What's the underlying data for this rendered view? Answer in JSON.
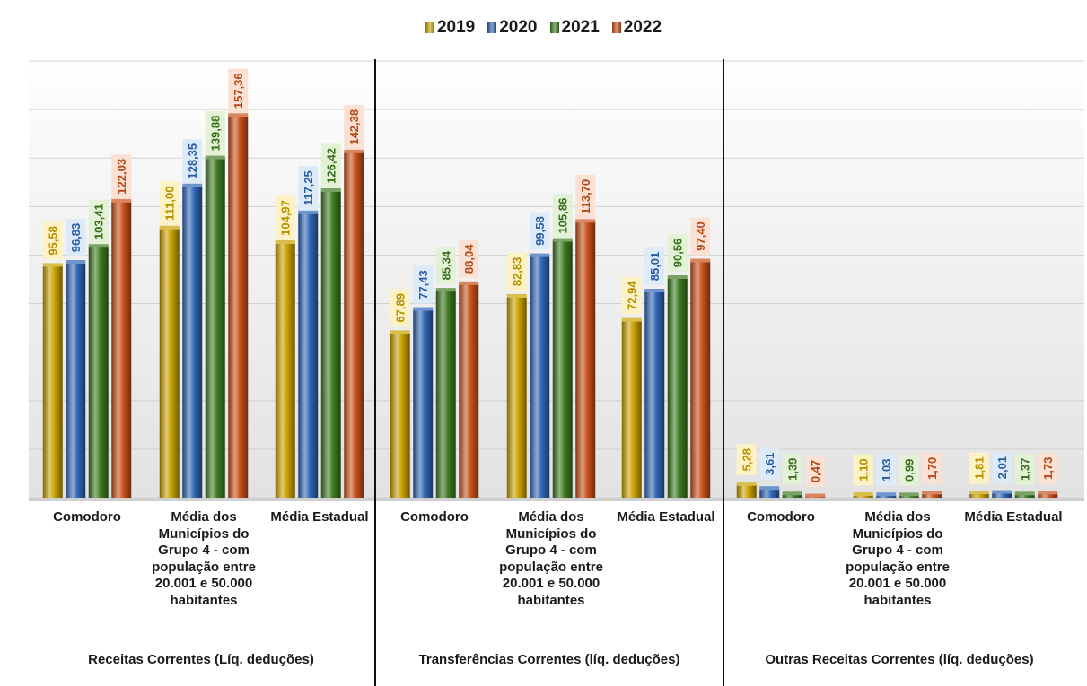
{
  "chart_data": {
    "type": "bar",
    "legend_position": "top",
    "grid": true,
    "ylim": [
      0,
      180
    ],
    "series_names": [
      "2019",
      "2020",
      "2021",
      "2022"
    ],
    "colors": {
      "2019": "#c9a100",
      "2020": "#2f66b6",
      "2021": "#3f7a22",
      "2022": "#c8501a"
    },
    "label_bg": {
      "2019": "#fdf2c6",
      "2020": "#ddeaf8",
      "2021": "#e3f1d6",
      "2022": "#fbe1d3"
    },
    "groups": [
      {
        "name": "Receitas Correntes (Líq. deduções)",
        "categories": [
          {
            "label": "Comodoro",
            "values": [
              "95,58",
              "96,83",
              "103,41",
              "122,03"
            ]
          },
          {
            "label": "Média dos Municípios do Grupo 4 - com população entre 20.001 e 50.000 habitantes",
            "values": [
              "111,00",
              "128,35",
              "139,88",
              "157,36"
            ]
          },
          {
            "label": "Média Estadual",
            "values": [
              "104,97",
              "117,25",
              "126,42",
              "142,38"
            ]
          }
        ]
      },
      {
        "name": "Transferências Correntes (líq. deduções)",
        "categories": [
          {
            "label": "Comodoro",
            "values": [
              "67,89",
              "77,43",
              "85,34",
              "88,04"
            ]
          },
          {
            "label": "Média dos Municípios do Grupo 4 - com população entre 20.001 e 50.000 habitantes",
            "values": [
              "82,83",
              "99,58",
              "105,86",
              "113,70"
            ]
          },
          {
            "label": "Média Estadual",
            "values": [
              "72,94",
              "85,01",
              "90,56",
              "97,40"
            ]
          }
        ]
      },
      {
        "name": "Outras Receitas Correntes (líq. deduções)",
        "categories": [
          {
            "label": "Comodoro",
            "values": [
              "5,28",
              "3,61",
              "1,39",
              "0,47"
            ]
          },
          {
            "label": "Média dos Municípios do Grupo 4 - com população entre 20.001 e 50.000 habitantes",
            "values": [
              "1,10",
              "1,03",
              "0,99",
              "1,70"
            ]
          },
          {
            "label": "Média Estadual",
            "values": [
              "1,81",
              "2,01",
              "1,37",
              "1,73"
            ]
          }
        ]
      }
    ]
  }
}
